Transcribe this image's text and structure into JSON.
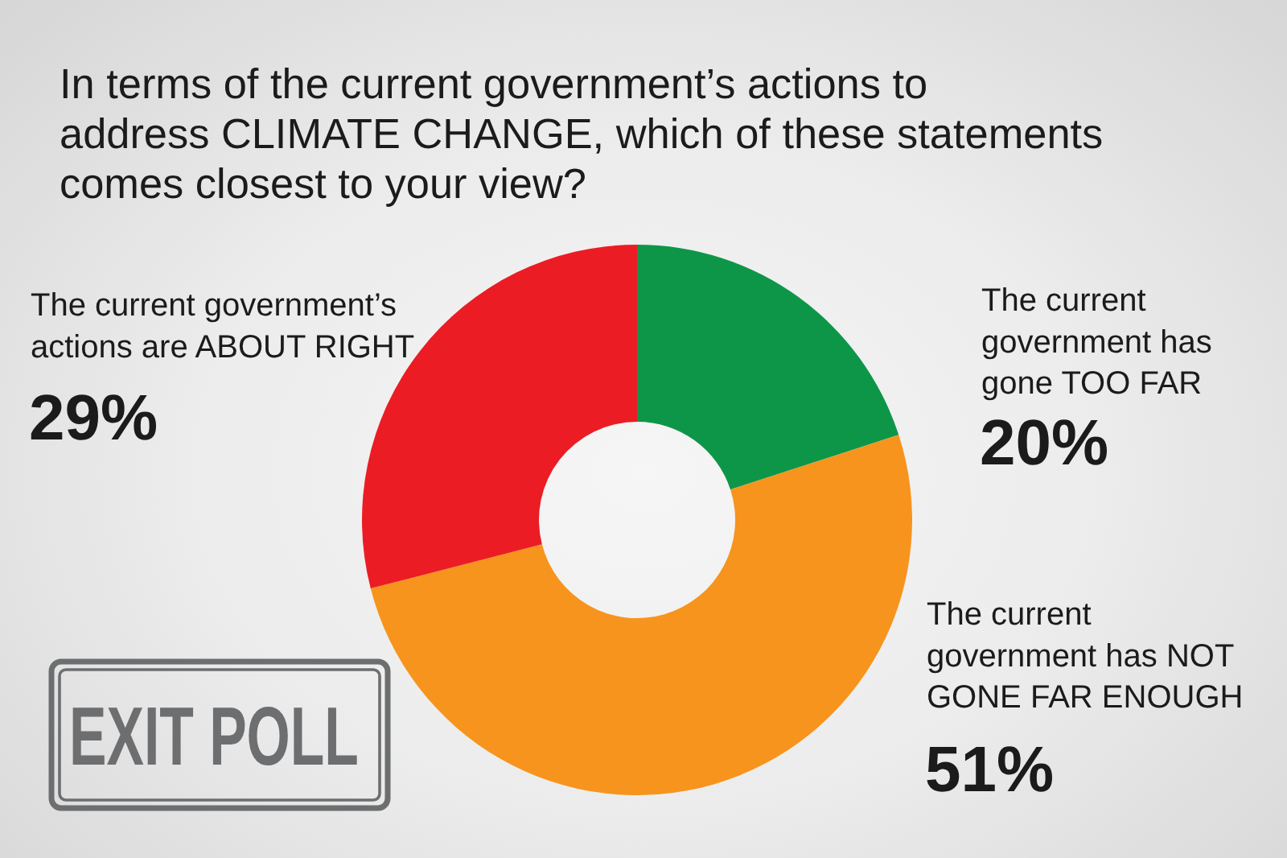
{
  "chart_data": {
    "type": "donut",
    "title": "In terms of the current government’s actions to address CLIMATE CHANGE, which of these statements comes closest to your view?",
    "categories": [
      "The current government has gone TOO FAR",
      "The current government has NOT GONE FAR ENOUGH",
      "The current government’s actions are ABOUT RIGHT"
    ],
    "values": [
      20,
      51,
      29
    ],
    "value_labels": [
      "20%",
      "51%",
      "29%"
    ],
    "colors": [
      "#0e9648",
      "#f7941d",
      "#ec1c24"
    ],
    "annotations": [
      "EXIT POLL"
    ]
  }
}
